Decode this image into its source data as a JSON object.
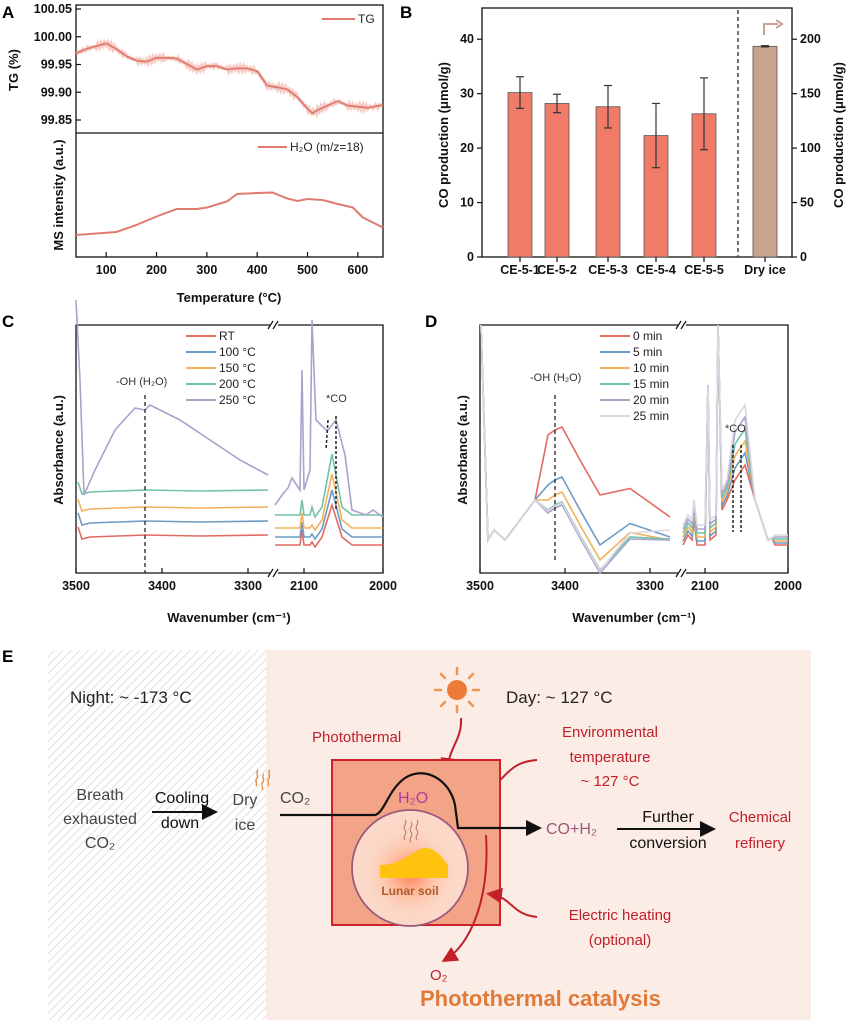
{
  "figure": {
    "panels": [
      "A",
      "B",
      "C",
      "D",
      "E"
    ]
  },
  "chart_data": [
    {
      "panel": "A",
      "type": "line",
      "subplots": [
        {
          "name": "TG",
          "ylabel": "TG (%)",
          "ylim": [
            99.83,
            100.05
          ],
          "yticks": [
            "100.05",
            "100.00",
            "99.95",
            "99.90",
            "99.85"
          ],
          "legend": "TG",
          "legend_position": "top-right",
          "color": "#e07a6e",
          "x": [
            40,
            60,
            80,
            100,
            120,
            140,
            160,
            180,
            200,
            220,
            240,
            260,
            280,
            300,
            320,
            340,
            360,
            380,
            400,
            420,
            440,
            460,
            480,
            500,
            510,
            520,
            540,
            560,
            580,
            600,
            620,
            650
          ],
          "y": [
            99.97,
            99.978,
            99.983,
            99.988,
            99.978,
            99.965,
            99.957,
            99.955,
            99.962,
            99.962,
            99.961,
            99.951,
            99.941,
            99.947,
            99.947,
            99.941,
            99.943,
            99.943,
            99.938,
            99.912,
            99.909,
            99.905,
            99.891,
            99.87,
            99.862,
            99.868,
            99.876,
            99.884,
            99.876,
            99.874,
            99.872,
            99.877
          ]
        },
        {
          "name": "H2O (m/z=18)",
          "ylabel": "MS intensity (a.u.)",
          "legend": "H₂O (m/z=18)",
          "legend_position": "top-right",
          "color": "#e07a6e",
          "x": [
            40,
            80,
            120,
            160,
            200,
            240,
            280,
            300,
            340,
            360,
            400,
            430,
            460,
            480,
            500,
            530,
            560,
            590,
            610,
            630,
            650
          ],
          "y": [
            0.1,
            0.13,
            0.16,
            0.3,
            0.47,
            0.62,
            0.62,
            0.65,
            0.77,
            0.92,
            0.94,
            0.95,
            0.83,
            0.78,
            0.82,
            0.8,
            0.72,
            0.65,
            0.45,
            0.35,
            0.25
          ]
        }
      ],
      "xlabel": "Temperature (°C)",
      "xlim": [
        40,
        650
      ],
      "xticks": [
        "100",
        "200",
        "300",
        "400",
        "500",
        "600"
      ]
    },
    {
      "panel": "B",
      "type": "bar",
      "categories": [
        "CE-5-1",
        "CE-5-2",
        "CE-5-3",
        "CE-5-4",
        "CE-5-5",
        "Dry ice"
      ],
      "values": [
        30.2,
        28.2,
        27.6,
        22.3,
        26.3,
        193.5
      ],
      "errors": [
        2.9,
        1.7,
        3.9,
        5.9,
        6.6,
        0.6
      ],
      "axis": [
        "left",
        "left",
        "left",
        "left",
        "left",
        "right"
      ],
      "colors": {
        "left": "#f07b68",
        "right": "#c8a38e"
      },
      "ylabel": "CO production (μmol/g)",
      "ylabel_right": "CO production (μmol/g)",
      "ylim": [
        0,
        45
      ],
      "ylim_right": [
        0,
        225
      ],
      "yticks": [
        "0",
        "10",
        "20",
        "30",
        "40"
      ],
      "yticks_right": [
        "0",
        "50",
        "100",
        "150",
        "200"
      ]
    },
    {
      "panel": "C",
      "type": "line",
      "xlabel": "Wavenumber (cm⁻¹)",
      "ylabel": "Absorbance (a.u.)",
      "xticks": [
        "3500",
        "3400",
        "3300",
        "2100",
        "2000"
      ],
      "annotations": [
        "-OH (H₂O)",
        "*CO"
      ],
      "series": [
        {
          "name": "RT",
          "color": "#e36a61"
        },
        {
          "name": "100 °C",
          "color": "#6d9bc3"
        },
        {
          "name": "150 °C",
          "color": "#f2b15b"
        },
        {
          "name": "200 °C",
          "color": "#72c2aa"
        },
        {
          "name": "250 °C",
          "color": "#a9a3cc"
        }
      ]
    },
    {
      "panel": "D",
      "type": "line",
      "xlabel": "Wavenumber (cm⁻¹)",
      "ylabel": "Absorbance (a.u.)",
      "xticks": [
        "3500",
        "3400",
        "3300",
        "2100",
        "2000"
      ],
      "annotations": [
        "-OH (H₂O)",
        "*CO"
      ],
      "series": [
        {
          "name": "0 min",
          "color": "#e36a61"
        },
        {
          "name": "5 min",
          "color": "#6d9bc3"
        },
        {
          "name": "10 min",
          "color": "#f2b15b"
        },
        {
          "name": "15 min",
          "color": "#72c2aa"
        },
        {
          "name": "20 min",
          "color": "#a9a3cc"
        },
        {
          "name": "25 min",
          "color": "#dcd5e3"
        }
      ]
    }
  ],
  "schematic": {
    "night": "Night: ~ -173 °C",
    "day": "Day: ~ 127 °C",
    "breath": [
      "Breath",
      "exhausted",
      "CO₂"
    ],
    "cooling": "Cooling",
    "down": "down",
    "dry": "Dry",
    "ice": "ice",
    "co2": "CO₂",
    "photothermal": "Photothermal",
    "env": [
      "Environmental",
      "temperature",
      "~ 127 °C"
    ],
    "h2o": "H₂O",
    "lunar_soil": "Lunar soil",
    "product": "CO+H₂",
    "further": "Further",
    "conversion": "conversion",
    "chemical": "Chemical",
    "refinery": "refinery",
    "electric": [
      "Electric heating",
      "(optional)"
    ],
    "o2": "O₂",
    "title": "Photothermal catalysis"
  }
}
